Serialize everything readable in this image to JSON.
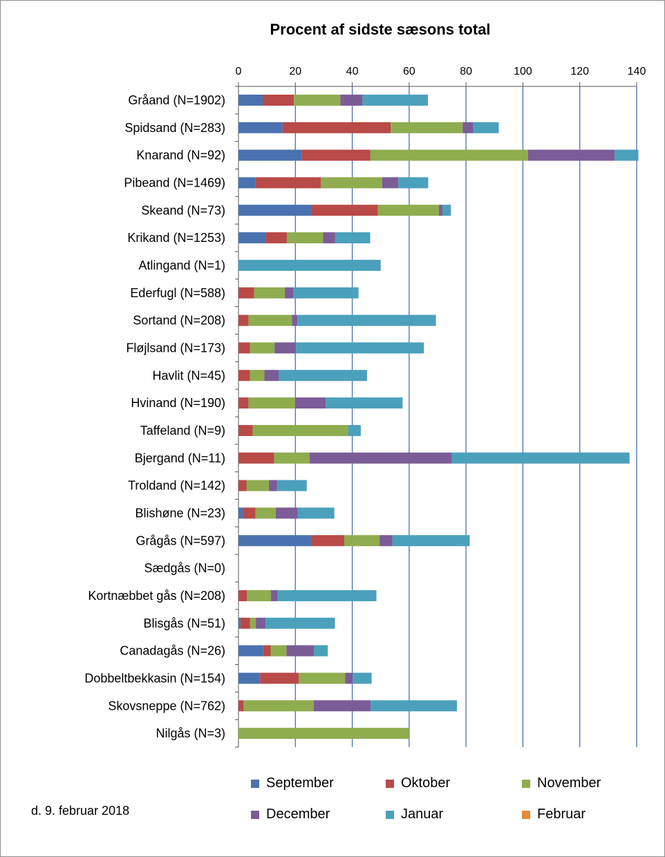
{
  "chart_data": {
    "type": "bar",
    "orientation": "horizontal",
    "stacked": true,
    "title": "Procent af sidste sæsons total",
    "xlim": [
      0,
      140
    ],
    "x_ticks": [
      "0",
      "20",
      "40",
      "60",
      "80",
      "100",
      "120",
      "140"
    ],
    "grid": "vertical gridlines",
    "legend_position": "bottom",
    "categories": [
      "Gråand (N=1902)",
      "Spidsand (N=283)",
      "Knarand (N=92)",
      "Pibeand (N=1469)",
      "Skeand (N=73)",
      "Krikand (N=1253)",
      "Atlingand (N=1)",
      "Ederfugl (N=588)",
      "Sortand (N=208)",
      "Fløjlsand (N=173)",
      "Havlit (N=45)",
      "Hvinand (N=190)",
      "Taffeland (N=9)",
      "Bjergand (N=11)",
      "Troldand (N=142)",
      "Blishøne (N=23)",
      "Grågås (N=597)",
      "Sædgås (N=0)",
      "Kortnæbbet gås (N=208)",
      "Blisgås (N=51)",
      "Canadagås (N=26)",
      "Dobbeltbekkasin (N=154)",
      "Skovsneppe (N=762)",
      "Nilgås (N=3)"
    ],
    "series": [
      {
        "name": "September",
        "color": "#4a72b0",
        "values": [
          8.5,
          15.5,
          22.3,
          6,
          25.5,
          9.5,
          0,
          0,
          0,
          0,
          0,
          0,
          0,
          0,
          0,
          1.6,
          25.5,
          0,
          0,
          0.7,
          8.7,
          7.6,
          0,
          0
        ]
      },
      {
        "name": "Oktober",
        "color": "#b84a48",
        "values": [
          11,
          38,
          24,
          23,
          23.5,
          7.5,
          0,
          5.5,
          3.5,
          4,
          4,
          3.5,
          5,
          12.5,
          2.8,
          4.4,
          11.7,
          0,
          3,
          3.4,
          2.6,
          13.6,
          1.8,
          0
        ]
      },
      {
        "name": "November",
        "color": "#8fac4f",
        "values": [
          16.3,
          25.3,
          55.5,
          21.5,
          21.5,
          12.7,
          0,
          10.8,
          15.3,
          8.7,
          5.1,
          16.4,
          33.5,
          12.5,
          7.9,
          7.1,
          12.4,
          0,
          8.4,
          2,
          5.6,
          16.3,
          24.7,
          60
        ]
      },
      {
        "name": "December",
        "color": "#7b5c97",
        "values": [
          7.8,
          3.7,
          30.5,
          5.7,
          1.2,
          4.3,
          0,
          2.9,
          1.9,
          7.5,
          5,
          10.8,
          0,
          50,
          2.8,
          7.7,
          4.5,
          0,
          2.4,
          3.4,
          9.6,
          2.6,
          20,
          0
        ]
      },
      {
        "name": "Januar",
        "color": "#4ba0bb",
        "values": [
          23,
          9,
          8.3,
          10.5,
          3,
          12.3,
          50,
          23,
          48.7,
          45,
          31.1,
          27,
          4.5,
          62.5,
          10.5,
          12.9,
          27.2,
          0,
          34.7,
          24.4,
          4.9,
          6.7,
          30.3,
          0
        ]
      },
      {
        "name": "Februar",
        "color": "#e58a3b",
        "values": [
          0,
          0,
          0,
          0,
          0,
          0,
          0,
          0,
          0,
          0,
          0,
          0,
          0,
          0,
          0,
          0,
          0,
          0,
          0,
          0,
          0,
          0,
          0,
          0
        ]
      }
    ]
  },
  "footer": {
    "date_text": "d. 9. februar  2018"
  }
}
